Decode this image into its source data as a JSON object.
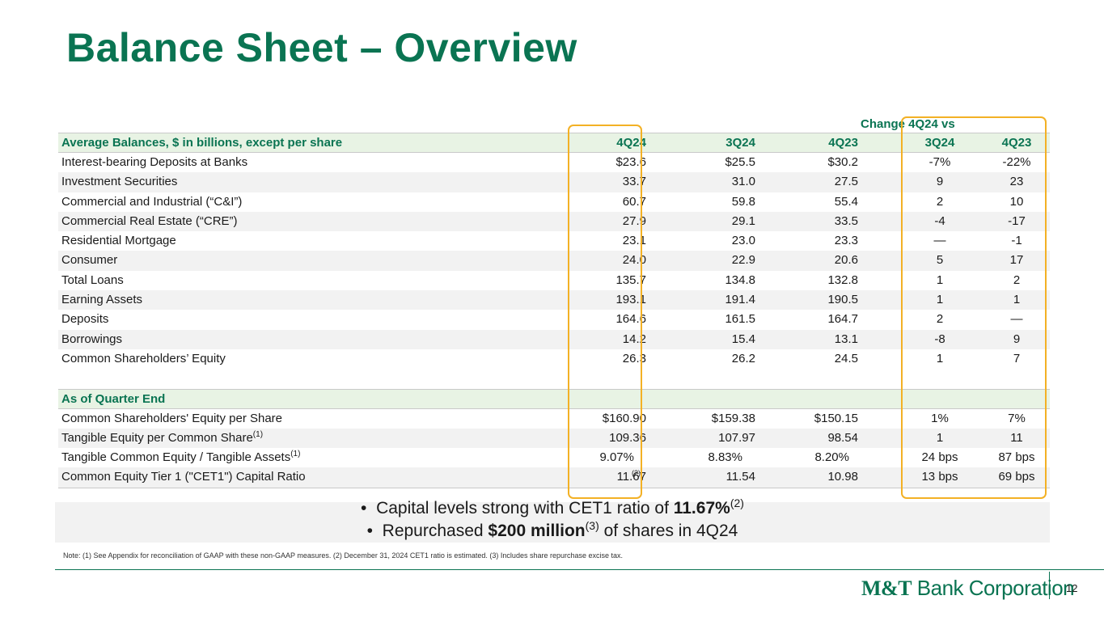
{
  "title": "Balance Sheet – Overview",
  "change_header": "Change 4Q24 vs",
  "avg": {
    "header": {
      "label": "Average Balances, $ in billions, except per share",
      "c1": "4Q24",
      "c2": "3Q24",
      "c3": "4Q23",
      "c4": "3Q24",
      "c5": "4Q23"
    },
    "rows": [
      {
        "label": "Interest-bearing Deposits at Banks",
        "c1": "$23.6",
        "c2": "$25.5",
        "c3": "$30.2",
        "c4": "-7%",
        "c5": "-22%"
      },
      {
        "label": "Investment Securities",
        "c1": "33.7",
        "c2": "31.0",
        "c3": "27.5",
        "c4": "9",
        "c5": "23"
      },
      {
        "label": "Commercial and Industrial (“C&I”)",
        "c1": "60.7",
        "c2": "59.8",
        "c3": "55.4",
        "c4": "2",
        "c5": "10"
      },
      {
        "label": "Commercial Real Estate (“CRE”)",
        "c1": "27.9",
        "c2": "29.1",
        "c3": "33.5",
        "c4": "-4",
        "c5": "-17"
      },
      {
        "label": "Residential Mortgage",
        "c1": "23.1",
        "c2": "23.0",
        "c3": "23.3",
        "c4": "—",
        "c5": "-1"
      },
      {
        "label": "Consumer",
        "c1": "24.0",
        "c2": "22.9",
        "c3": "20.6",
        "c4": "5",
        "c5": "17"
      },
      {
        "label": "Total Loans",
        "c1": "135.7",
        "c2": "134.8",
        "c3": "132.8",
        "c4": "1",
        "c5": "2"
      },
      {
        "label": "Earning Assets",
        "c1": "193.1",
        "c2": "191.4",
        "c3": "190.5",
        "c4": "1",
        "c5": "1"
      },
      {
        "label": "Deposits",
        "c1": "164.6",
        "c2": "161.5",
        "c3": "164.7",
        "c4": "2",
        "c5": "—"
      },
      {
        "label": "Borrowings",
        "c1": "14.2",
        "c2": "15.4",
        "c3": "13.1",
        "c4": "-8",
        "c5": "9"
      },
      {
        "label": "Common Shareholders’ Equity",
        "c1": "26.3",
        "c2": "26.2",
        "c3": "24.5",
        "c4": "1",
        "c5": "7"
      }
    ]
  },
  "qe": {
    "header": "As of Quarter End",
    "rows": [
      {
        "label": "Common Shareholders' Equity per Share",
        "sup": "",
        "c1": "$160.90",
        "c2": "$159.38",
        "c3": "$150.15",
        "c4": "1%",
        "c5": "7%"
      },
      {
        "label": "Tangible Equity per Common Share",
        "sup": "(1)",
        "c1": "109.36",
        "c2": "107.97",
        "c3": "98.54",
        "c4": "1",
        "c5": "11"
      },
      {
        "label": "Tangible Common Equity / Tangible Assets",
        "sup": "(1)",
        "c1": "9.07%",
        "c2": "8.83%",
        "c3": "8.20%",
        "c4": "24 bps",
        "c5": "87 bps"
      },
      {
        "label": "Common Equity Tier 1 (\"CET1\") Capital Ratio",
        "sup": "",
        "c1": "11.67",
        "c1sup": "(2)",
        "c2": "11.54",
        "c3": "10.98",
        "c4": "13 bps",
        "c5": "69 bps"
      }
    ]
  },
  "bullets": {
    "b1_pre": "Capital levels strong with CET1 ratio of ",
    "b1_bold": "11.67%",
    "b1_sup": "(2)",
    "b2_pre": "Repurchased ",
    "b2_bold": "$200 million",
    "b2_sup": "(3)",
    "b2_post": " of shares in 4Q24"
  },
  "note": "Note: (1) See Appendix for reconciliation of GAAP with these non-GAAP measures. (2) December 31, 2024 CET1 ratio is estimated. (3) Includes share repurchase excise tax.",
  "logo": {
    "bold": "M&T",
    "rest": " Bank Corporation"
  },
  "page_number": "12",
  "colors": {
    "brand_green": "#0a7452",
    "highlight": "#f3b125",
    "header_fill": "#e8f3e4"
  }
}
